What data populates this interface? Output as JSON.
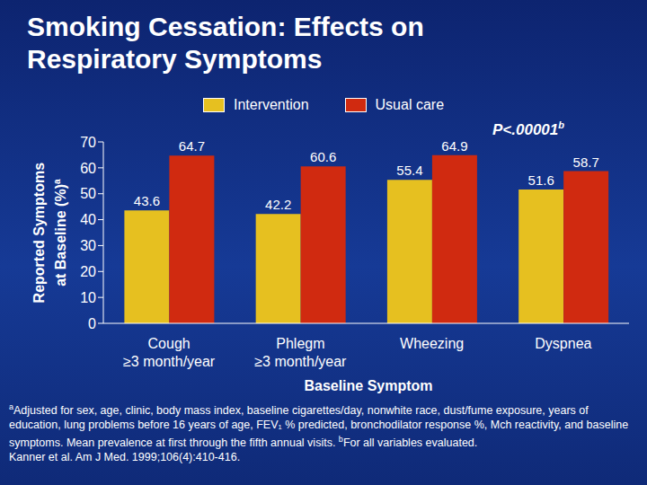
{
  "chart_data": {
    "type": "bar",
    "title": "Smoking Cessation: Effects on Respiratory Symptoms",
    "categories": [
      "Cough\n≥3 month/year",
      "Phlegm\n≥3 month/year",
      "Wheezing",
      "Dyspnea"
    ],
    "series": [
      {
        "name": "Intervention",
        "color": "#e6c020",
        "values": [
          43.6,
          42.2,
          55.4,
          51.6
        ]
      },
      {
        "name": "Usual care",
        "color": "#d02a10",
        "values": [
          64.7,
          60.6,
          64.9,
          58.7
        ]
      }
    ],
    "ylim": [
      0,
      70
    ],
    "yticks": [
      0,
      10,
      20,
      30,
      40,
      50,
      60,
      70
    ],
    "y_label": "Reported Symptoms\nat Baseline (%)",
    "y_label_note": "a",
    "x_label": "Baseline Symptom",
    "annotation": "P<.00001",
    "annotation_note": "b",
    "grid": false,
    "data_labels": true,
    "footnotes": [
      {
        "mark": "a",
        "text": "Adjusted for sex, age, clinic, body mass index, baseline cigarettes/day, nonwhite race, dust/fume exposure, years of education, lung problems before 16 years of age, FEV₁ % predicted, bronchodilator response %, Mch reactivity, and baseline symptoms. Mean prevalence at first through the fifth annual visits."
      },
      {
        "mark": "b",
        "text": "For all variables evaluated."
      }
    ],
    "source": "Kanner et al. Am J Med. 1999;106(4):410-416."
  }
}
